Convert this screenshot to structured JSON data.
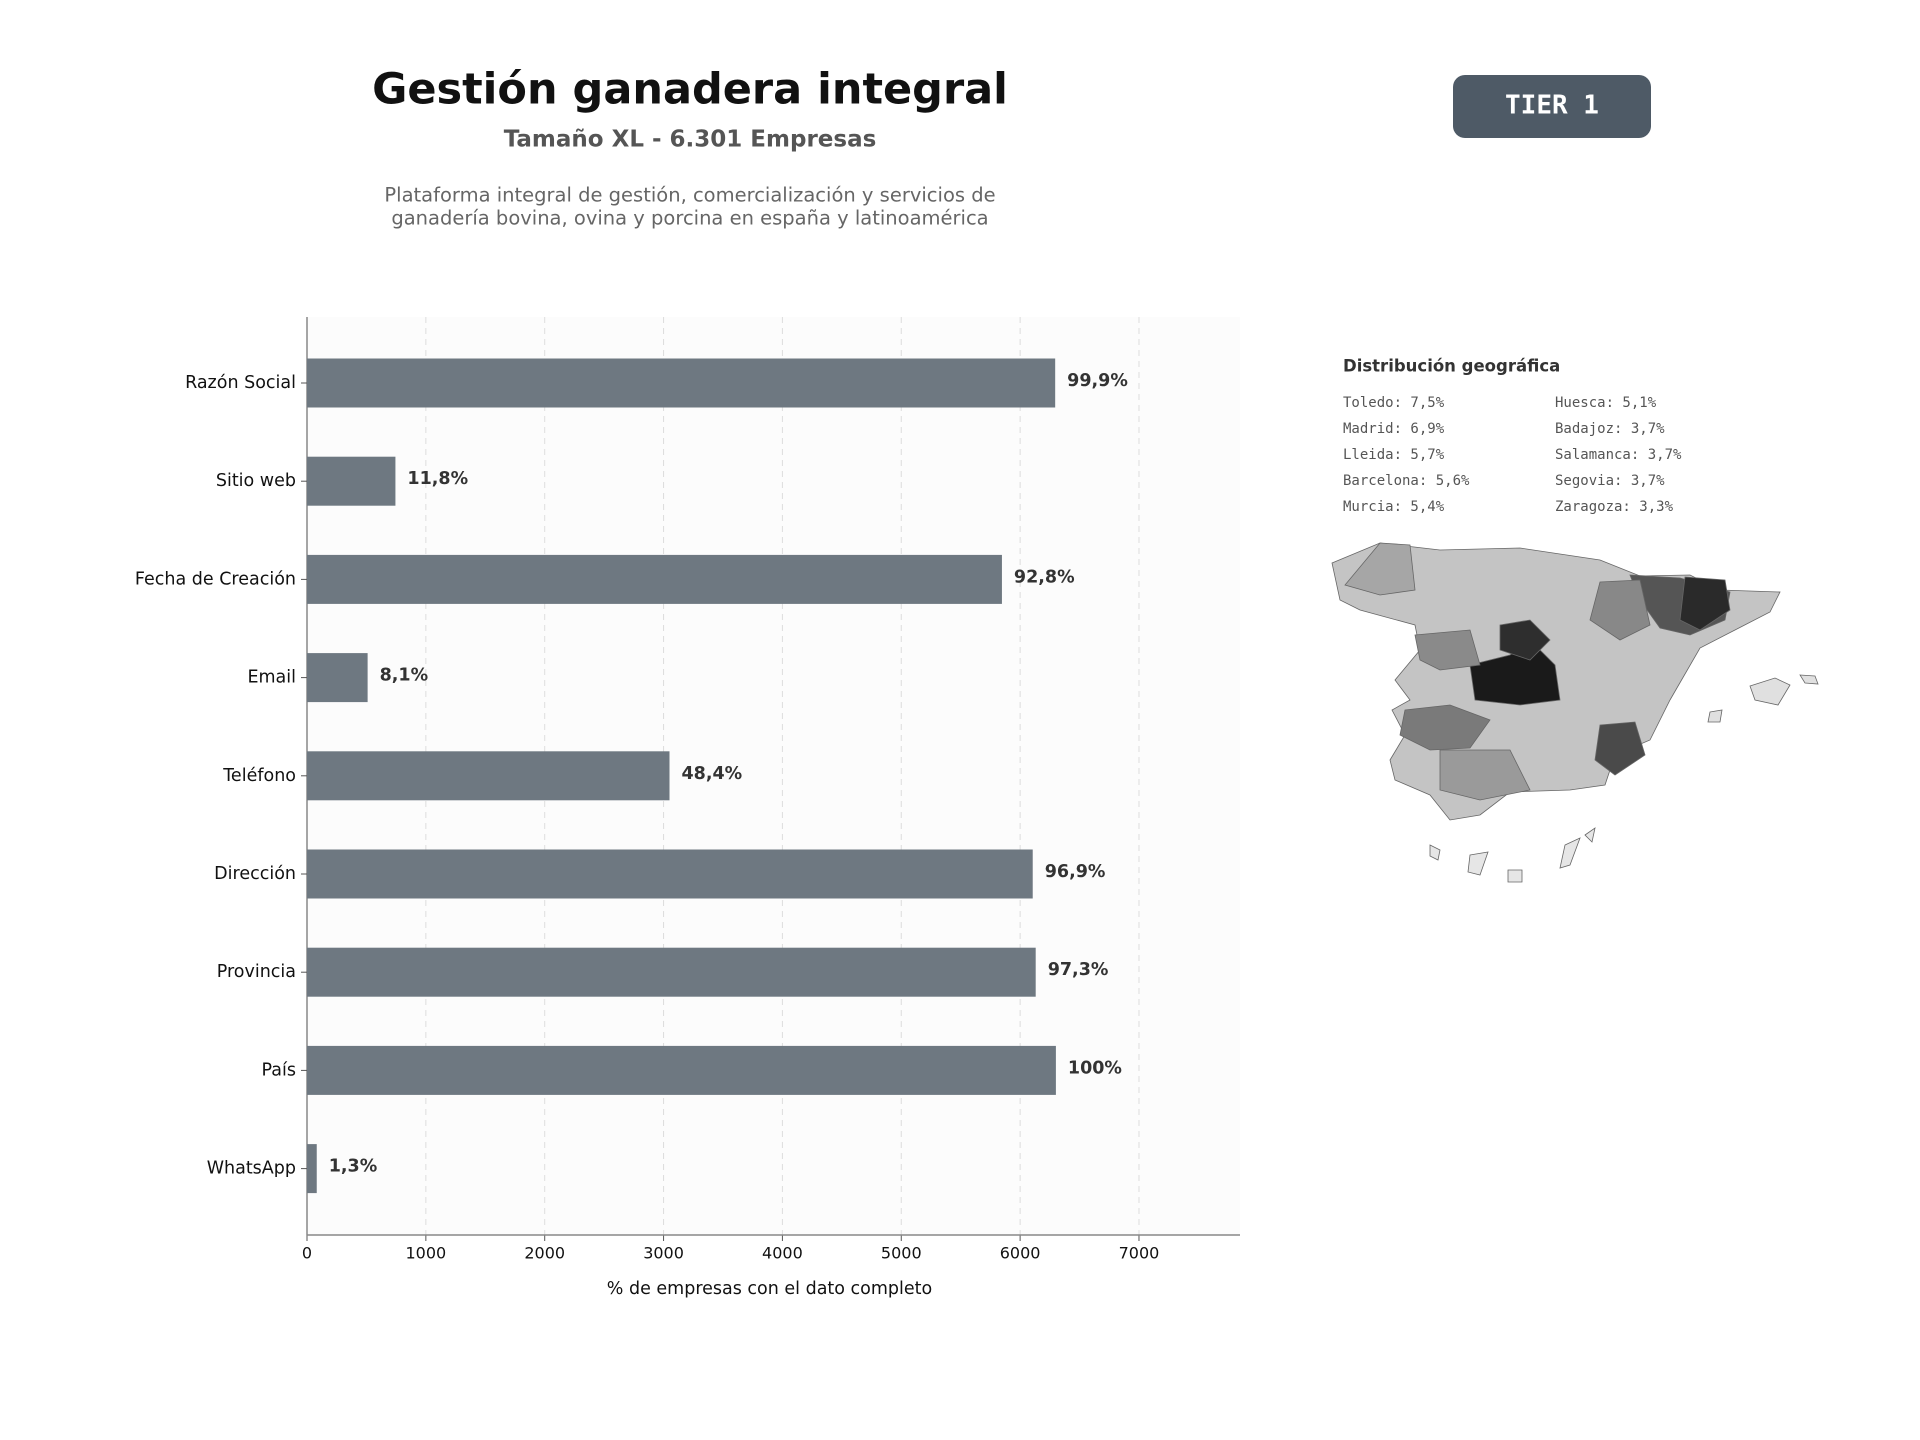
{
  "header": {
    "title": "Gestión ganadera integral",
    "subtitle": "Tamaño XL - 6.301 Empresas",
    "description": [
      "Plataforma integral de gestión, comercialización y servicios de",
      "ganadería bovina, ovina y porcina en españa y latinoamérica"
    ],
    "badge": "TIER 1"
  },
  "geo": {
    "title": "Distribución geográfica",
    "items": [
      "Toledo: 7,5%",
      "Madrid: 6,9%",
      "Lleida: 5,7%",
      "Barcelona: 5,6%",
      "Murcia: 5,4%",
      "Huesca: 5,1%",
      "Badajoz: 3,7%",
      "Salamanca: 3,7%",
      "Segovia: 3,7%",
      "Zaragoza: 3,3%"
    ]
  },
  "chart_data": {
    "type": "hbar",
    "xlabel": "% de empresas con el dato completo",
    "categories": [
      "Razón Social",
      "Sitio web",
      "Fecha de Creación",
      "Email",
      "Teléfono",
      "Dirección",
      "Provincia",
      "País",
      "WhatsApp"
    ],
    "values": [
      6295,
      744,
      5847,
      510,
      3050,
      6106,
      6131,
      6301,
      82
    ],
    "value_labels": [
      "99,9%",
      "11,8%",
      "92,8%",
      "8,1%",
      "48,4%",
      "96,9%",
      "97,3%",
      "100%",
      "1,3%"
    ],
    "color": "#6e7881",
    "xlim": [
      0,
      7850
    ],
    "xticks": [
      0,
      1000,
      2000,
      3000,
      4000,
      5000,
      6000,
      7000
    ],
    "grid": true
  }
}
